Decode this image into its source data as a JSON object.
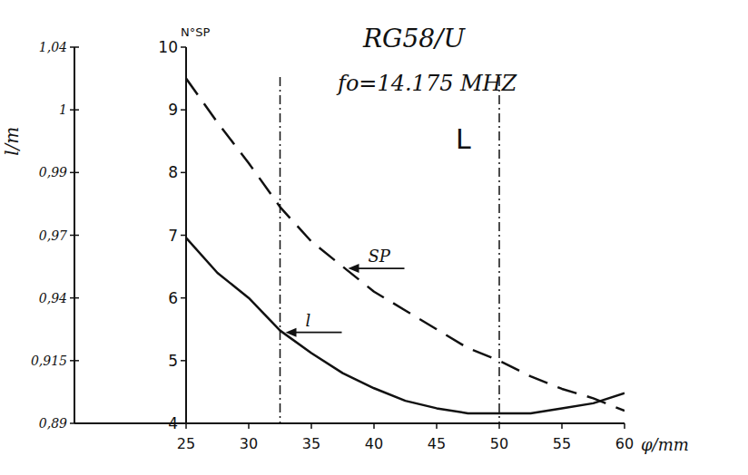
{
  "chart_data": {
    "type": "line",
    "title": "RG58/U",
    "subtitle": "fo=14.175 MHZ",
    "annotations": [
      "L"
    ],
    "x_label": "φ/mm",
    "y_label": "N°SP",
    "y2_label": "l/m",
    "x": [
      25,
      27.5,
      30,
      32.5,
      35,
      37.5,
      40,
      42.5,
      45,
      47.5,
      50,
      52.5,
      55,
      57.5,
      60
    ],
    "series": [
      {
        "name": "SP",
        "color": "#111111",
        "line_style": "dashed",
        "values": [
          9.5,
          8.8,
          8.15,
          7.45,
          6.9,
          6.5,
          6.1,
          5.8,
          5.5,
          5.2,
          5.0,
          4.75,
          4.55,
          4.4,
          4.2
        ]
      },
      {
        "name": "l",
        "color": "#111111",
        "line_style": "solid",
        "axis": "y2",
        "values": [
          0.964,
          0.95,
          0.94,
          0.927,
          0.918,
          0.91,
          0.904,
          0.899,
          0.896,
          0.894,
          0.894,
          0.894,
          0.896,
          0.898,
          0.902
        ]
      }
    ],
    "vlines": [
      32.5,
      50
    ],
    "xlim": [
      25,
      60
    ],
    "xticks": [
      25,
      30,
      35,
      40,
      45,
      50,
      55,
      60
    ],
    "ylim": [
      4,
      10
    ],
    "yticks": [
      4,
      5,
      6,
      7,
      8,
      9,
      10
    ],
    "y2lim": [
      0.89,
      1.04
    ],
    "y2ticks": [
      {
        "value": 0.89,
        "label": "0,89"
      },
      {
        "value": 0.915,
        "label": "0,915"
      },
      {
        "value": 0.94,
        "label": "0,94"
      },
      {
        "value": 0.965,
        "label": "0,97"
      },
      {
        "value": 0.99,
        "label": "0,99"
      },
      {
        "value": 1.015,
        "label": "1"
      },
      {
        "value": 1.04,
        "label": "1,04"
      }
    ],
    "grid": false
  }
}
